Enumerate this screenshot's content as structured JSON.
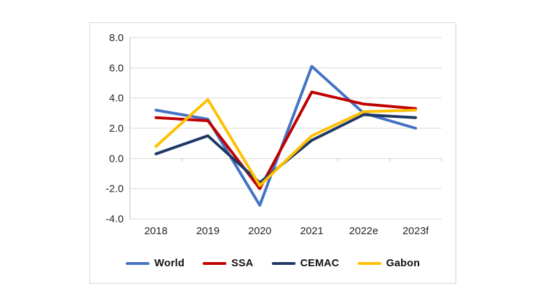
{
  "chart": {
    "container_border_color": "#d6d6d6",
    "grid_color": "#d9d9d9",
    "axis_color": "#bfbfbf",
    "tick_label_color": "#262626",
    "background": "#ffffff"
  },
  "chart_data": {
    "type": "line",
    "title": "",
    "xlabel": "",
    "ylabel": "",
    "categories": [
      "2018",
      "2019",
      "2020",
      "2021",
      "2022e",
      "2023f"
    ],
    "series": [
      {
        "name": "World",
        "color": "#4472C4",
        "values": [
          3.2,
          2.6,
          -3.1,
          6.1,
          3.0,
          2.0
        ]
      },
      {
        "name": "SSA",
        "color": "#C00000",
        "values": [
          2.7,
          2.5,
          -2.0,
          4.4,
          3.6,
          3.3
        ]
      },
      {
        "name": "CEMAC",
        "color": "#1F3864",
        "values": [
          0.3,
          1.5,
          -1.6,
          1.2,
          2.9,
          2.7
        ]
      },
      {
        "name": "Gabon",
        "color": "#FFC000",
        "values": [
          0.8,
          3.9,
          -1.8,
          1.5,
          3.1,
          3.2
        ]
      }
    ],
    "ylim": [
      -4.0,
      8.0
    ],
    "ytick_step": 2.0,
    "ytick_labels": [
      "8.0",
      "6.0",
      "4.0",
      "2.0",
      "0.0",
      "-2.0",
      "-4.0"
    ],
    "grid": true,
    "legend_position": "bottom",
    "line_width": 4
  }
}
